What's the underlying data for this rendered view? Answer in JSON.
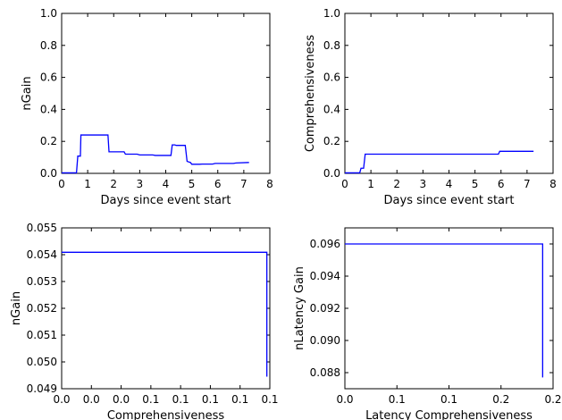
{
  "colors": {
    "series": "#0000ff",
    "axes": "#000000",
    "background": "#ffffff"
  },
  "chart_data": [
    {
      "type": "line",
      "xlabel": "Days since event start",
      "ylabel": "nGain",
      "xlim": [
        0,
        8
      ],
      "ylim": [
        0,
        1.0
      ],
      "xticks": [
        0,
        1,
        2,
        3,
        4,
        5,
        6,
        7,
        8
      ],
      "xtick_labels": [
        "0",
        "1",
        "2",
        "3",
        "4",
        "5",
        "6",
        "7",
        "8"
      ],
      "yticks": [
        0,
        0.2,
        0.4,
        0.6,
        0.8,
        1.0
      ],
      "ytick_labels": [
        "0.0",
        "0.2",
        "0.4",
        "0.6",
        "0.8",
        "1.0"
      ],
      "grid": false,
      "series": [
        {
          "x": [
            0,
            0.57,
            0.62,
            0.72,
            0.74,
            1.78,
            1.82,
            2.4,
            2.45,
            2.9,
            3.0,
            3.5,
            3.6,
            4.2,
            4.25,
            4.35,
            4.4,
            4.75,
            4.82,
            4.95,
            5.0,
            5.3,
            5.4,
            5.8,
            5.9,
            6.6,
            6.7,
            7.2
          ],
          "y": [
            0.003,
            0.003,
            0.108,
            0.108,
            0.24,
            0.24,
            0.135,
            0.135,
            0.12,
            0.12,
            0.115,
            0.115,
            0.112,
            0.112,
            0.178,
            0.178,
            0.175,
            0.175,
            0.075,
            0.068,
            0.057,
            0.057,
            0.058,
            0.058,
            0.062,
            0.062,
            0.065,
            0.068
          ]
        }
      ]
    },
    {
      "type": "line",
      "xlabel": "Days since event start",
      "ylabel": "Comprehensiveness",
      "xlim": [
        0,
        8
      ],
      "ylim": [
        0,
        1.0
      ],
      "xticks": [
        0,
        1,
        2,
        3,
        4,
        5,
        6,
        7,
        8
      ],
      "xtick_labels": [
        "0",
        "1",
        "2",
        "3",
        "4",
        "5",
        "6",
        "7",
        "8"
      ],
      "yticks": [
        0,
        0.2,
        0.4,
        0.6,
        0.8,
        1.0
      ],
      "ytick_labels": [
        "0.0",
        "0.2",
        "0.4",
        "0.6",
        "0.8",
        "1.0"
      ],
      "grid": false,
      "series": [
        {
          "x": [
            0,
            0.57,
            0.62,
            0.72,
            0.78,
            5.9,
            5.95,
            7.25
          ],
          "y": [
            0.003,
            0.003,
            0.032,
            0.032,
            0.12,
            0.12,
            0.138,
            0.138
          ]
        }
      ]
    },
    {
      "type": "line",
      "xlabel": "Comprehensiveness",
      "ylabel": "nGain",
      "xlim": [
        0.0,
        0.14
      ],
      "ylim": [
        0.049,
        0.055
      ],
      "xticks": [
        0.0,
        0.02,
        0.04,
        0.06,
        0.08,
        0.1,
        0.12,
        0.14
      ],
      "xtick_labels": [
        "0.0",
        "0.0",
        "0.0",
        "0.1",
        "0.1",
        "0.1",
        "0.1",
        "0.1"
      ],
      "yticks": [
        0.049,
        0.05,
        0.051,
        0.052,
        0.053,
        0.054,
        0.055
      ],
      "ytick_labels": [
        "0.049",
        "0.050",
        "0.051",
        "0.052",
        "0.053",
        "0.054",
        "0.055"
      ],
      "grid": false,
      "series": [
        {
          "x": [
            0.0,
            0.138,
            0.138
          ],
          "y": [
            0.05409,
            0.05409,
            0.04945
          ]
        }
      ]
    },
    {
      "type": "line",
      "xlabel": "Latency Comprehensiveness",
      "ylabel": "nLatency Gain",
      "xlim": [
        0.0,
        0.2
      ],
      "ylim": [
        0.087,
        0.097
      ],
      "xticks": [
        0.0,
        0.05,
        0.1,
        0.15,
        0.2
      ],
      "xtick_labels": [
        "0.0",
        "0.1",
        "0.1",
        "0.2",
        "0.2"
      ],
      "yticks": [
        0.088,
        0.09,
        0.092,
        0.094,
        0.096
      ],
      "ytick_labels": [
        "0.088",
        "0.090",
        "0.092",
        "0.094",
        "0.096"
      ],
      "grid": false,
      "series": [
        {
          "x": [
            0.0,
            0.19,
            0.19
          ],
          "y": [
            0.096,
            0.096,
            0.0877
          ]
        }
      ]
    }
  ]
}
